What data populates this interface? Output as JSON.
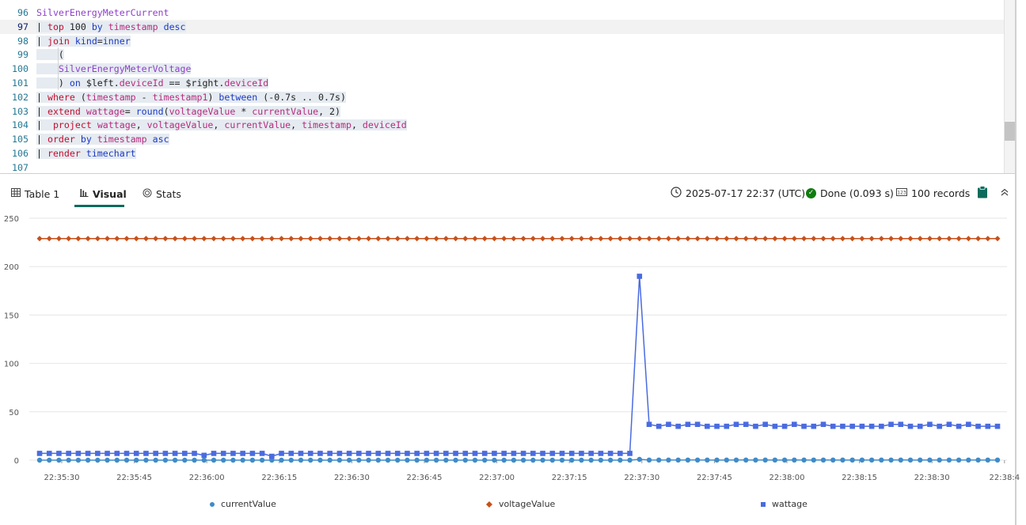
{
  "editor": {
    "lines": [
      {
        "n": "96",
        "tokens": [
          [
            "tk-table",
            "SilverEnergyMeterCurrent"
          ]
        ]
      },
      {
        "n": "97",
        "tokens": [
          [
            "tk-txt",
            "| "
          ],
          [
            "tk-kw",
            "top"
          ],
          [
            "tk-txt",
            " 100 "
          ],
          [
            "tk-op",
            "by"
          ],
          [
            "tk-txt",
            " "
          ],
          [
            "tk-fn",
            "timestamp"
          ],
          [
            "tk-txt",
            " "
          ],
          [
            "tk-op",
            "desc"
          ]
        ]
      },
      {
        "n": "98",
        "tokens": [
          [
            "tk-txt",
            "| "
          ],
          [
            "tk-kw",
            "join"
          ],
          [
            "tk-txt",
            " "
          ],
          [
            "tk-op",
            "kind"
          ],
          [
            "tk-txt",
            "="
          ],
          [
            "tk-op",
            "inner"
          ]
        ]
      },
      {
        "n": "99",
        "tokens": [
          [
            "tk-txt",
            "    ("
          ]
        ]
      },
      {
        "n": "100",
        "tokens": [
          [
            "tk-txt",
            "    "
          ],
          [
            "tk-table",
            "SilverEnergyMeterVoltage"
          ]
        ]
      },
      {
        "n": "101",
        "tokens": [
          [
            "tk-txt",
            "    ) "
          ],
          [
            "tk-op",
            "on"
          ],
          [
            "tk-txt",
            " $left."
          ],
          [
            "tk-fn",
            "deviceId"
          ],
          [
            "tk-txt",
            " == $right."
          ],
          [
            "tk-fn",
            "deviceId"
          ]
        ]
      },
      {
        "n": "102",
        "tokens": [
          [
            "tk-txt",
            "| "
          ],
          [
            "tk-kw",
            "where"
          ],
          [
            "tk-txt",
            " ("
          ],
          [
            "tk-fn",
            "timestamp"
          ],
          [
            "tk-txt",
            " - "
          ],
          [
            "tk-fn",
            "timestamp1"
          ],
          [
            "tk-txt",
            ") "
          ],
          [
            "tk-op",
            "between"
          ],
          [
            "tk-txt",
            " (-0.7s .. 0.7s)"
          ]
        ]
      },
      {
        "n": "103",
        "tokens": [
          [
            "tk-txt",
            "| "
          ],
          [
            "tk-kw",
            "extend"
          ],
          [
            "tk-txt",
            " "
          ],
          [
            "tk-fn",
            "wattage"
          ],
          [
            "tk-txt",
            "= "
          ],
          [
            "tk-op",
            "round"
          ],
          [
            "tk-txt",
            "("
          ],
          [
            "tk-fn",
            "voltageValue"
          ],
          [
            "tk-txt",
            " * "
          ],
          [
            "tk-fn",
            "currentValue"
          ],
          [
            "tk-txt",
            ", 2)"
          ]
        ]
      },
      {
        "n": "104",
        "tokens": [
          [
            "tk-txt",
            "|  "
          ],
          [
            "tk-kw",
            "project"
          ],
          [
            "tk-txt",
            " "
          ],
          [
            "tk-fn",
            "wattage"
          ],
          [
            "tk-txt",
            ", "
          ],
          [
            "tk-fn",
            "voltageValue"
          ],
          [
            "tk-txt",
            ", "
          ],
          [
            "tk-fn",
            "currentValue"
          ],
          [
            "tk-txt",
            ", "
          ],
          [
            "tk-fn",
            "timestamp"
          ],
          [
            "tk-txt",
            ", "
          ],
          [
            "tk-fn",
            "deviceId"
          ]
        ]
      },
      {
        "n": "105",
        "tokens": [
          [
            "tk-txt",
            "| "
          ],
          [
            "tk-kw",
            "order"
          ],
          [
            "tk-txt",
            " "
          ],
          [
            "tk-op",
            "by"
          ],
          [
            "tk-txt",
            " "
          ],
          [
            "tk-fn",
            "timestamp"
          ],
          [
            "tk-txt",
            " "
          ],
          [
            "tk-op",
            "asc"
          ]
        ]
      },
      {
        "n": "106",
        "tokens": [
          [
            "tk-txt",
            "| "
          ],
          [
            "tk-kw",
            "render"
          ],
          [
            "tk-txt",
            " "
          ],
          [
            "tk-op",
            "timechart"
          ]
        ]
      },
      {
        "n": "107",
        "tokens": []
      }
    ]
  },
  "tabs": [
    {
      "label": "Table 1",
      "icon": "table-icon",
      "active": false
    },
    {
      "label": "Visual",
      "icon": "bar-chart-icon",
      "active": true
    },
    {
      "label": "Stats",
      "icon": "stats-icon",
      "active": false
    }
  ],
  "status": {
    "timestamp": "2025-07-17 22:37 (UTC)",
    "done": "Done (0.093 s)",
    "records": "100 records",
    "clock_icon": "clock-icon",
    "done_icon": "check-circle-icon",
    "records_icon": "records-icon",
    "clipboard_icon": "clipboard-icon",
    "collapse_icon": "chevron-up-icon"
  },
  "chart_data": {
    "type": "line",
    "ylim": [
      0,
      250
    ],
    "yticks": [
      0,
      50,
      100,
      150,
      200,
      250
    ],
    "xtick_labels": [
      "22:35:30",
      "22:35:45",
      "22:36:00",
      "22:36:15",
      "22:36:30",
      "22:36:45",
      "22:37:00",
      "22:37:15",
      "22:37:30",
      "22:37:45",
      "22:38:00",
      "22:38:15",
      "22:38:30",
      "22:38:4"
    ],
    "xlabel": "",
    "ylabel": "",
    "grid": true,
    "legend_position": "bottom",
    "series": [
      {
        "name": "currentValue",
        "color": "#3f8bc9",
        "marker": "circle",
        "values": [
          0.03,
          0.03,
          0.03,
          0.03,
          0.03,
          0.03,
          0.03,
          0.03,
          0.03,
          0.03,
          0.03,
          0.03,
          0.03,
          0.03,
          0.03,
          0.03,
          0.03,
          0.03,
          0.03,
          0.03,
          0.03,
          0.03,
          0.03,
          0.03,
          0.03,
          0.03,
          0.03,
          0.03,
          0.03,
          0.03,
          0.03,
          0.03,
          0.03,
          0.03,
          0.03,
          0.03,
          0.03,
          0.03,
          0.03,
          0.03,
          0.03,
          0.03,
          0.03,
          0.03,
          0.03,
          0.03,
          0.03,
          0.03,
          0.03,
          0.03,
          0.03,
          0.03,
          0.03,
          0.03,
          0.03,
          0.03,
          0.03,
          0.03,
          0.03,
          0.03,
          0.03,
          0.03,
          0.82,
          0.16,
          0.15,
          0.16,
          0.15,
          0.16,
          0.16,
          0.15,
          0.15,
          0.15,
          0.16,
          0.16,
          0.15,
          0.16,
          0.15,
          0.15,
          0.16,
          0.15,
          0.15,
          0.16,
          0.15,
          0.15,
          0.15,
          0.15,
          0.15,
          0.15,
          0.16,
          0.16,
          0.15,
          0.15,
          0.16,
          0.15,
          0.16,
          0.15,
          0.16,
          0.15,
          0.15,
          0.15
        ]
      },
      {
        "name": "voltageValue",
        "color": "#c8501a",
        "marker": "diamond",
        "values": [
          229,
          229,
          229,
          229,
          229,
          229,
          229,
          229,
          229,
          229,
          229,
          229,
          229,
          229,
          229,
          229,
          229,
          229,
          229,
          229,
          229,
          229,
          229,
          229,
          229,
          229,
          229,
          229,
          229,
          229,
          229,
          229,
          229,
          229,
          229,
          229,
          229,
          229,
          229,
          229,
          229,
          229,
          229,
          229,
          229,
          229,
          229,
          229,
          229,
          229,
          229,
          229,
          229,
          229,
          229,
          229,
          229,
          229,
          229,
          229,
          229,
          229,
          229,
          229,
          229,
          229,
          229,
          229,
          229,
          229,
          229,
          229,
          229,
          229,
          229,
          229,
          229,
          229,
          229,
          229,
          229,
          229,
          229,
          229,
          229,
          229,
          229,
          229,
          229,
          229,
          229,
          229,
          229,
          229,
          229,
          229,
          229,
          229,
          229,
          229
        ]
      },
      {
        "name": "wattage",
        "color": "#4a6be0",
        "marker": "square",
        "values": [
          7,
          7,
          7,
          7,
          7,
          7,
          7,
          7,
          7,
          7,
          7,
          7,
          7,
          7,
          7,
          7,
          7,
          5,
          7,
          7,
          7,
          7,
          7,
          7,
          4,
          7,
          7,
          7,
          7,
          7,
          7,
          7,
          7,
          7,
          7,
          7,
          7,
          7,
          7,
          7,
          7,
          7,
          7,
          7,
          7,
          7,
          7,
          7,
          7,
          7,
          7,
          7,
          7,
          7,
          7,
          7,
          7,
          7,
          7,
          7,
          7,
          7,
          190,
          37,
          35,
          37,
          35,
          37,
          37,
          35,
          35,
          35,
          37,
          37,
          35,
          37,
          35,
          35,
          37,
          35,
          35,
          37,
          35,
          35,
          35,
          35,
          35,
          35,
          37,
          37,
          35,
          35,
          37,
          35,
          37,
          35,
          37,
          35,
          35,
          35
        ]
      }
    ]
  }
}
